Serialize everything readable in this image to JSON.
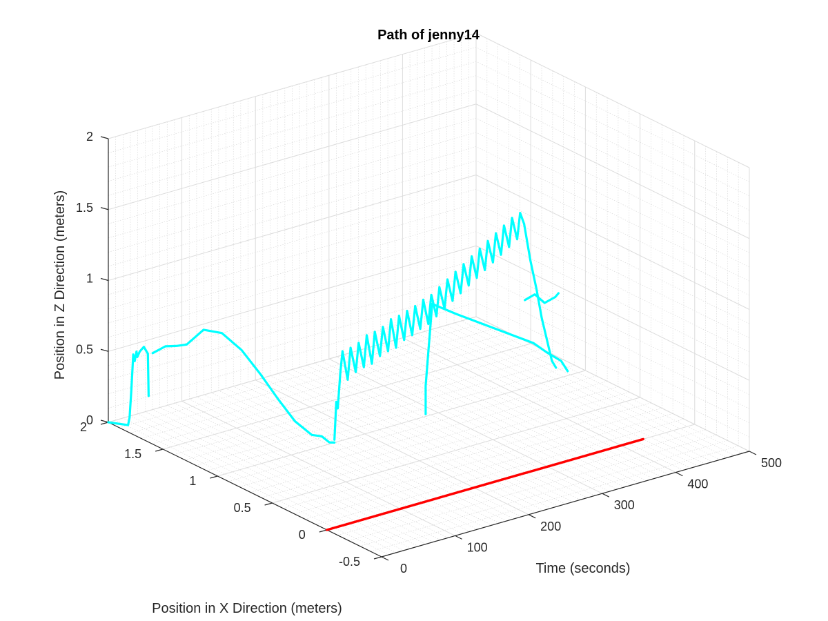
{
  "chart_data": {
    "type": "line",
    "subtype": "3d-line",
    "title": "Path of jenny14",
    "xlabel": "Position in X Direction (meters)",
    "ylabel": "Time (seconds)",
    "zlabel": "Position in Z Direction (meters)",
    "xlim": [
      -0.5,
      2
    ],
    "ylim": [
      0,
      500
    ],
    "zlim": [
      0,
      2
    ],
    "x_ticks": [
      "-0.5",
      "0",
      "0.5",
      "1",
      "1.5",
      "2"
    ],
    "y_ticks": [
      "0",
      "100",
      "200",
      "300",
      "400",
      "500"
    ],
    "z_ticks": [
      "0",
      "0.5",
      "1",
      "1.5",
      "2"
    ],
    "grid": true,
    "minor_grid": true,
    "series": [
      {
        "color": "#ff0000",
        "x": [
          0.0,
          0.0
        ],
        "y": [
          0,
          430
        ],
        "z": [
          0.0,
          0.0
        ]
      },
      {
        "color": "#00ffff",
        "x": [
          2.0,
          1.9,
          1.9,
          1.89,
          1.88,
          1.88,
          1.87,
          1.87,
          1.86,
          1.85,
          1.84,
          1.84
        ],
        "y": [
          0,
          12,
          14,
          15,
          16,
          18,
          19,
          20,
          22,
          26,
          30,
          31
        ],
        "z": [
          0.0,
          0.0,
          0.05,
          0.25,
          0.5,
          0.45,
          0.52,
          0.48,
          0.52,
          0.55,
          0.5,
          0.2
        ]
      },
      {
        "color": "#00ffff",
        "x": [
          1.83,
          1.8,
          1.75,
          1.7,
          1.6,
          1.5,
          1.4,
          1.3,
          1.2,
          1.1,
          1.0,
          0.95,
          0.92,
          0.9
        ],
        "y": [
          35,
          48,
          56,
          62,
          70,
          80,
          92,
          103,
          112,
          120,
          128,
          134,
          140,
          144
        ],
        "z": [
          0.5,
          0.54,
          0.55,
          0.57,
          0.7,
          0.7,
          0.6,
          0.45,
          0.3,
          0.17,
          0.1,
          0.1,
          0.06,
          0.06
        ]
      },
      {
        "color": "#00ffff",
        "x": [
          0.9,
          0.89,
          0.89,
          0.88,
          0.88,
          0.86,
          0.86,
          0.84,
          0.84,
          0.82,
          0.82,
          0.8,
          0.8,
          0.78,
          0.78,
          0.76,
          0.76,
          0.74,
          0.74,
          0.72,
          0.72,
          0.7,
          0.7,
          0.68,
          0.68,
          0.66,
          0.66,
          0.64,
          0.64,
          0.62,
          0.62,
          0.6,
          0.6,
          0.58,
          0.58,
          0.56,
          0.56,
          0.54,
          0.54,
          0.52,
          0.52,
          0.5,
          0.5,
          0.48,
          0.48,
          0.46,
          0.46,
          0.44,
          0.44,
          0.43
        ],
        "y": [
          144,
          145,
          147,
          149,
          152,
          156,
          160,
          164,
          168,
          172,
          176,
          180,
          184,
          188,
          192,
          196,
          200,
          204,
          208,
          212,
          216,
          220,
          224,
          228,
          232,
          236,
          240,
          244,
          248,
          252,
          256,
          260,
          264,
          268,
          272,
          276,
          280,
          284,
          288,
          292,
          296,
          300,
          304,
          308,
          312,
          316,
          320,
          324,
          328,
          332
        ],
        "z": [
          0.08,
          0.35,
          0.3,
          0.55,
          0.7,
          0.5,
          0.72,
          0.55,
          0.75,
          0.58,
          0.8,
          0.6,
          0.82,
          0.65,
          0.85,
          0.68,
          0.9,
          0.7,
          0.92,
          0.75,
          0.95,
          0.78,
          0.98,
          0.82,
          1.02,
          0.85,
          1.05,
          0.9,
          1.1,
          0.95,
          1.15,
          1.0,
          1.2,
          1.05,
          1.25,
          1.1,
          1.3,
          1.15,
          1.35,
          1.2,
          1.4,
          1.25,
          1.45,
          1.3,
          1.5,
          1.35,
          1.55,
          1.4,
          1.58,
          1.5
        ]
      },
      {
        "color": "#00ffff",
        "x": [
          0.43,
          0.4,
          0.37,
          0.35,
          0.33,
          0.31,
          0.3
        ],
        "y": [
          332,
          336,
          340,
          344,
          348,
          352,
          356
        ],
        "z": [
          1.5,
          1.25,
          1.05,
          0.85,
          0.7,
          0.55,
          0.5
        ]
      },
      {
        "color": "#00ffff",
        "x": [
          0.25,
          0.3,
          0.35,
          0.4,
          0.45
        ],
        "y": [
          352,
          355,
          348,
          342,
          336
        ],
        "z": [
          1.05,
          1.0,
          0.95,
          1.0,
          0.95
        ]
      },
      {
        "color": "#00ffff",
        "x": [
          0.22,
          0.28,
          0.34,
          0.4,
          0.5,
          0.6,
          0.7,
          0.8,
          0.82,
          0.84,
          0.86,
          0.86
        ],
        "y": [
          360,
          360,
          350,
          340,
          320,
          300,
          280,
          262,
          262,
          262,
          262,
          262
        ],
        "z": [
          0.5,
          0.55,
          0.6,
          0.66,
          0.72,
          0.78,
          0.84,
          0.9,
          0.7,
          0.5,
          0.3,
          0.1
        ]
      }
    ]
  }
}
